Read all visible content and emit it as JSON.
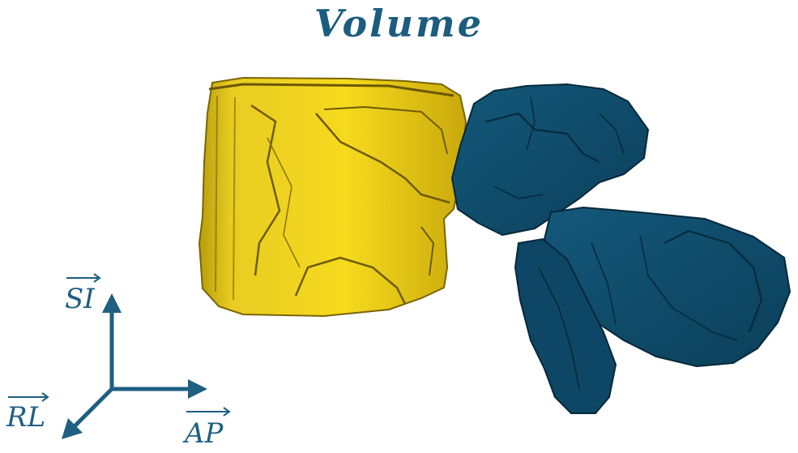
{
  "title": "Volume",
  "colors": {
    "title": "#1b5c7f",
    "vertebral_body": "#e6c616",
    "vertebral_body_dark": "#8a7408",
    "posterior_elements": "#0f4c6b",
    "posterior_elements_dark": "#06283a",
    "axes": "#1e5f82"
  },
  "axes": {
    "si": "SI",
    "rl": "RL",
    "ap": "AP"
  }
}
